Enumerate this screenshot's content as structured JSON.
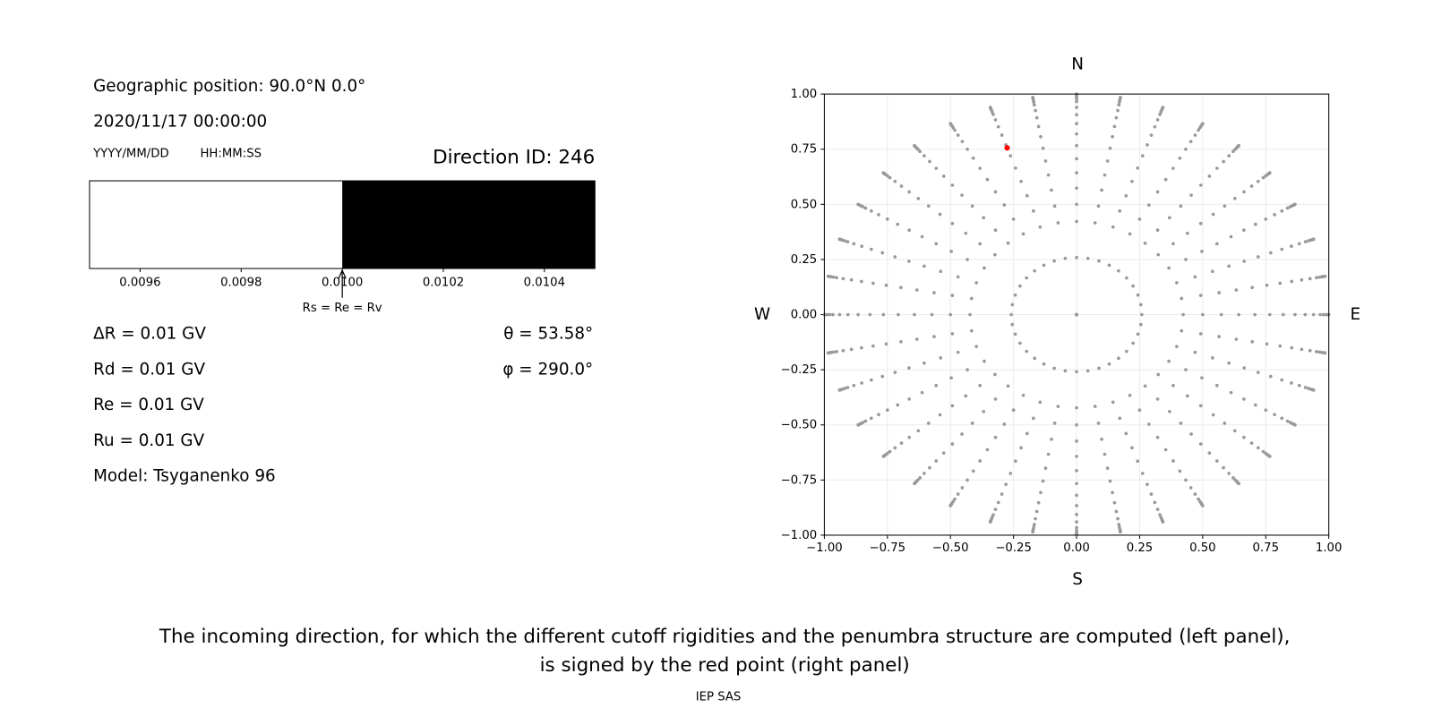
{
  "left_panel": {
    "position": "Geographic position: 90.0°N 0.0°",
    "datetime": "2020/11/17 00:00:00",
    "date_format": "YYYY/MM/DD",
    "time_format": "HH:MM:SS",
    "direction_id": "Direction ID: 246",
    "penumbra": {
      "xlim": [
        0.0095,
        0.0105
      ],
      "xticks": [
        0.0096,
        0.0098,
        {
          "value": 0.01,
          "label": "0.0100"
        },
        0.0102,
        0.0104
      ],
      "cutoff": 0.01,
      "cutoff_label": "Rs = Re = Rv",
      "colors": [
        "#ffffff",
        "#000000"
      ]
    },
    "rigidities": [
      "ΔR = 0.01 GV",
      "Rd = 0.01 GV",
      "Re = 0.01 GV",
      "Ru = 0.01 GV",
      "Model: Tsyganenko 96"
    ],
    "theta": {
      "value": 53.58,
      "label": "θ = 53.58°"
    },
    "phi": {
      "value": 290.0,
      "label": "φ = 290.0°"
    }
  },
  "chart_data": {
    "type": "scatter",
    "compass": {
      "north": "N",
      "south": "S",
      "west": "W",
      "east": "E"
    },
    "grid_points": {
      "color": "#999999",
      "zenith": [
        0,
        15,
        25,
        30,
        35,
        40,
        45,
        50,
        55,
        60,
        65,
        70,
        75,
        78,
        81,
        84,
        87,
        90
      ],
      "azimuth": [
        0,
        10,
        20,
        30,
        40,
        50,
        60,
        70,
        80,
        90,
        100,
        110,
        120,
        130,
        140,
        150,
        160,
        170,
        180,
        190,
        200,
        210,
        220,
        230,
        240,
        250,
        260,
        270,
        280,
        290,
        300,
        310,
        320,
        330,
        340,
        350
      ]
    },
    "highlight_color": "#ff0000",
    "xlim": [
      -1,
      1
    ],
    "ylim": [
      -1,
      1
    ],
    "xticks": [
      {
        "value": -1,
        "label": "−1.00"
      },
      {
        "value": -0.75,
        "label": "−0.75"
      },
      {
        "value": -0.5,
        "label": "−0.50"
      },
      {
        "value": -0.25,
        "label": "−0.25"
      },
      {
        "value": 0,
        "label": "0.00"
      },
      {
        "value": 0.25,
        "label": "0.25"
      },
      {
        "value": 0.5,
        "label": "0.50"
      },
      {
        "value": 0.75,
        "label": "0.75"
      },
      {
        "value": 1,
        "label": "1.00"
      }
    ],
    "yticks": [
      {
        "value": -1,
        "label": "−1.00"
      },
      {
        "value": -0.75,
        "label": "−0.75"
      },
      {
        "value": -0.5,
        "label": "−0.50"
      },
      {
        "value": -0.25,
        "label": "−0.25"
      },
      {
        "value": 0,
        "label": "0.00"
      },
      {
        "value": 0.25,
        "label": "0.25"
      },
      {
        "value": 0.5,
        "label": "0.50"
      },
      {
        "value": 0.75,
        "label": "0.75"
      },
      {
        "value": 1,
        "label": "1.00"
      }
    ],
    "grid": true
  },
  "caption": [
    "The incoming direction, for which the different cutoff rigidities and the penumbra structure are computed (left panel),",
    "is signed by the red point (right panel)"
  ],
  "footer": "IEP SAS"
}
